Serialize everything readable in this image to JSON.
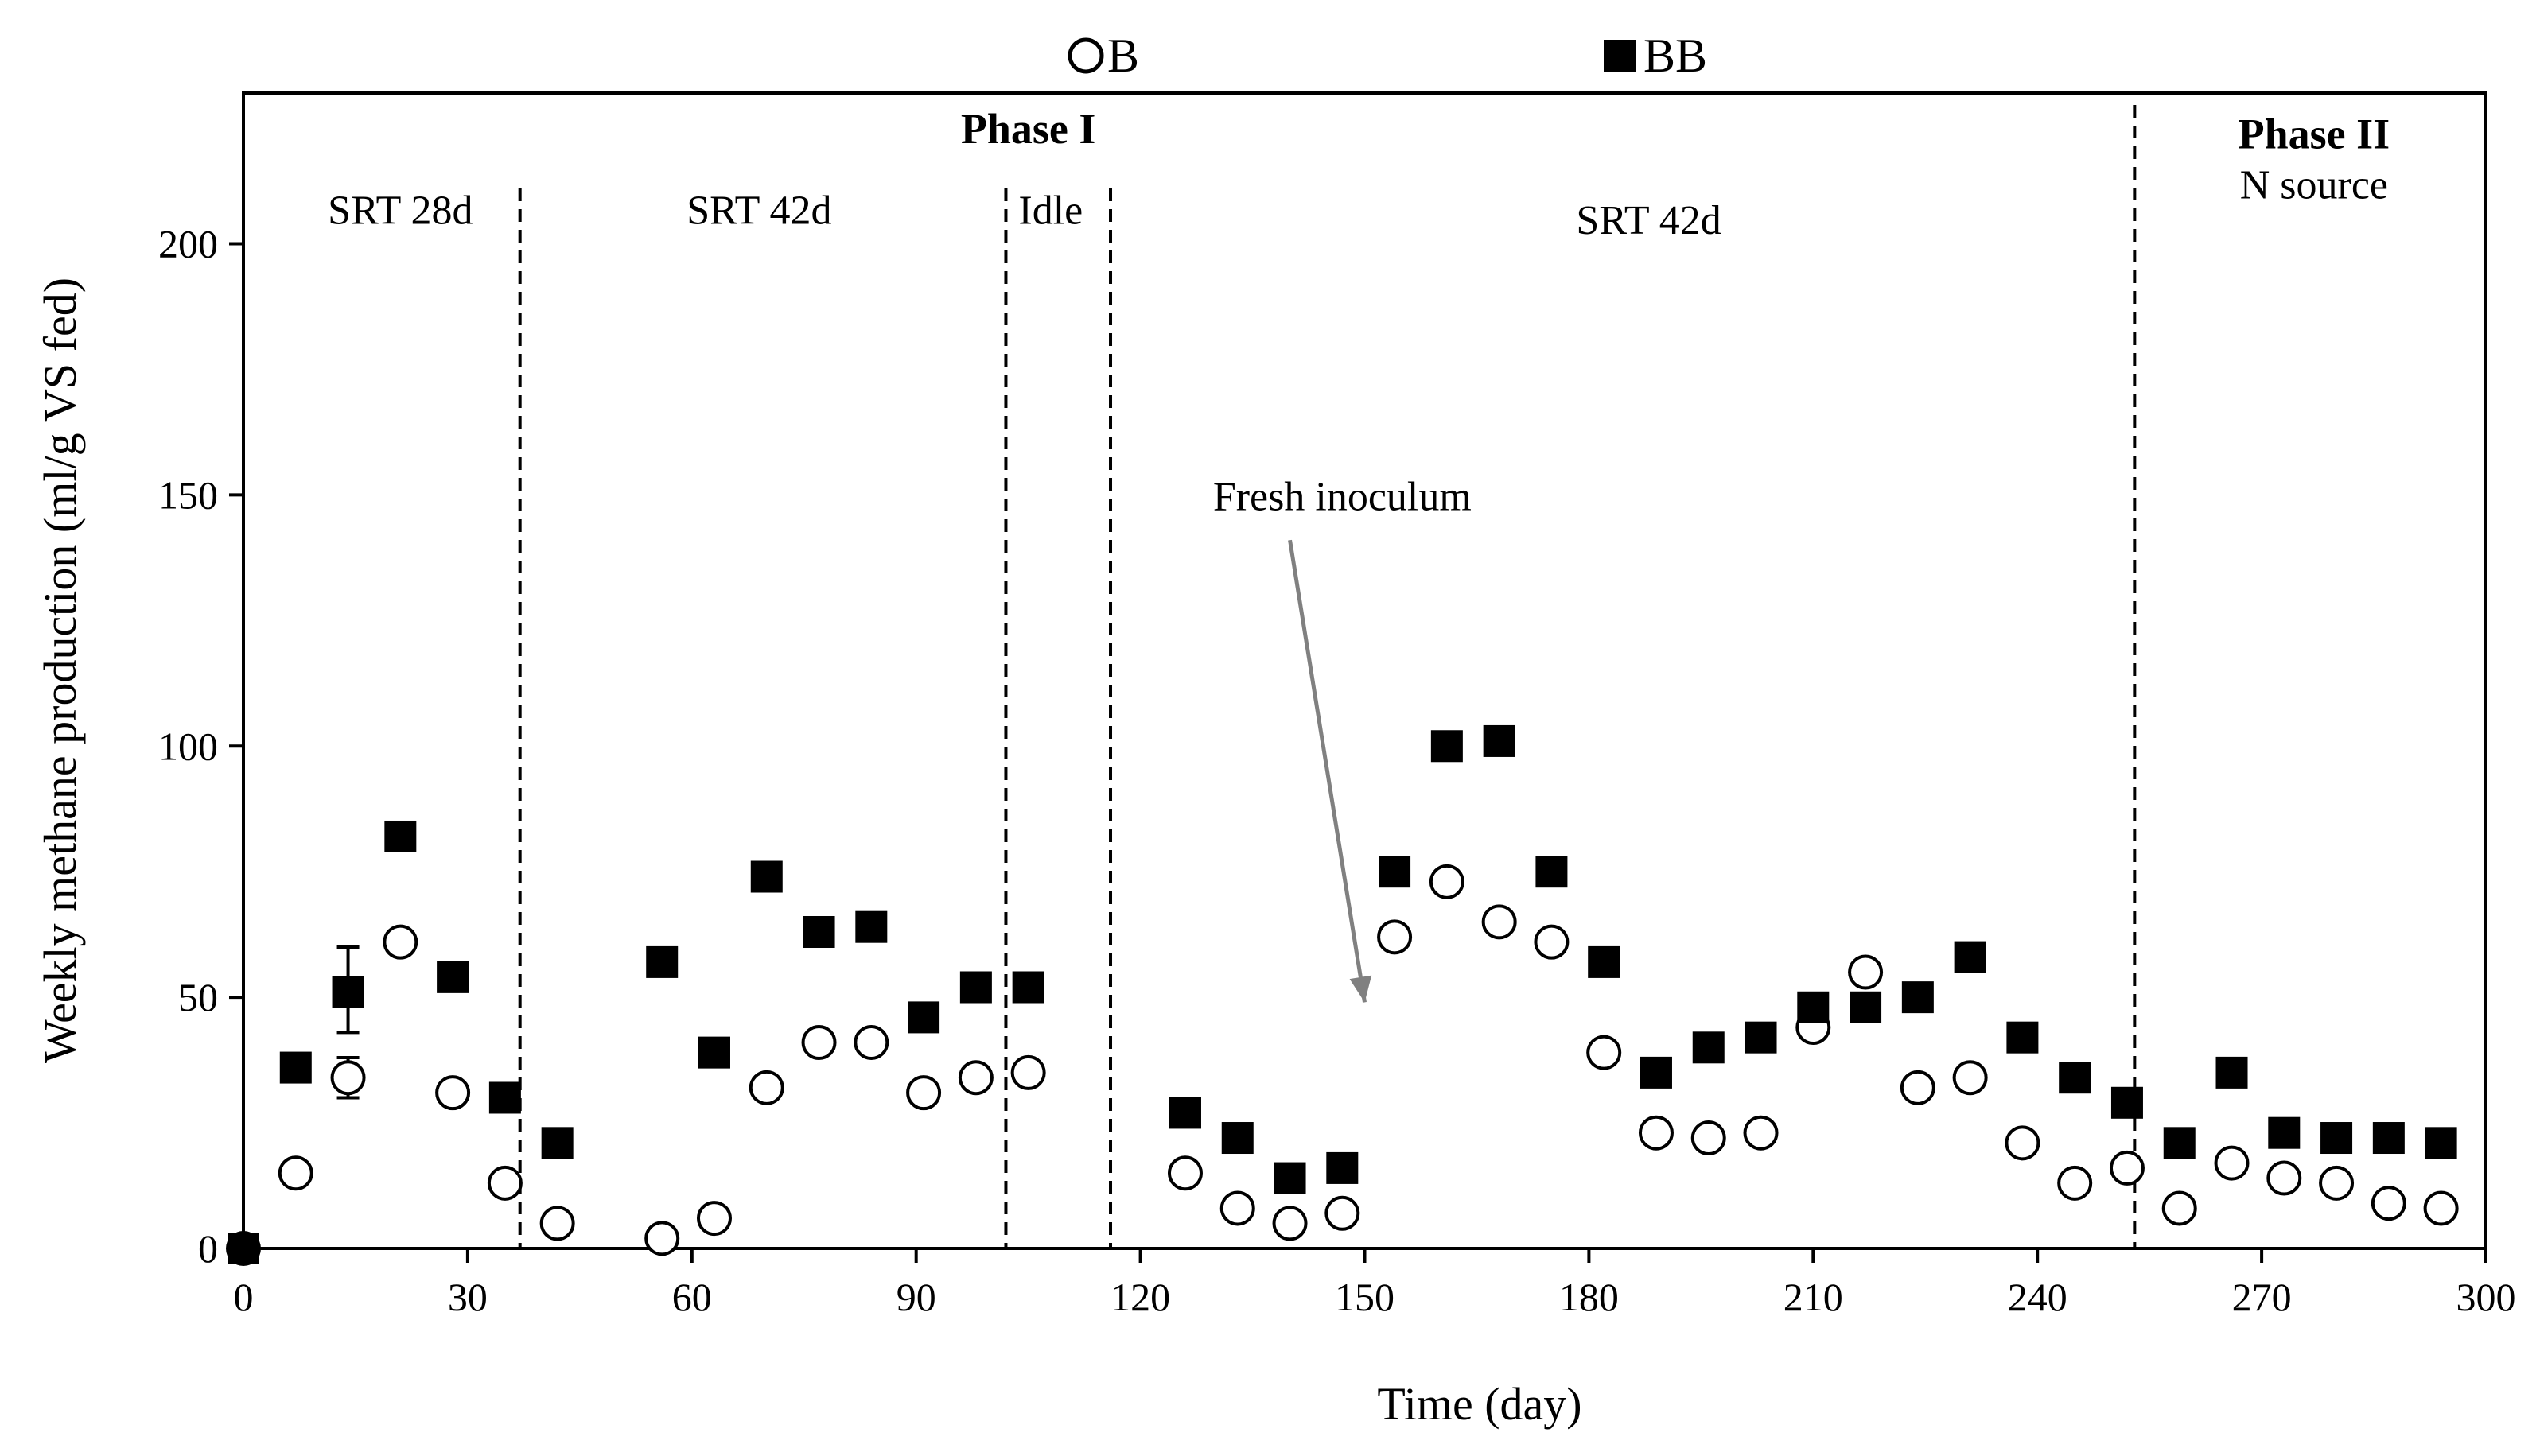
{
  "chart_data": {
    "type": "scatter",
    "title": "",
    "xlabel": "Time (day)",
    "ylabel": "Weekly methane production (ml/g VS fed)",
    "xlim": [
      0,
      300
    ],
    "ylim": [
      0,
      230
    ],
    "x_ticks": [
      0,
      30,
      60,
      90,
      120,
      150,
      180,
      210,
      240,
      270,
      300
    ],
    "y_ticks": [
      0,
      50,
      100,
      150,
      200
    ],
    "grid": false,
    "legend_position": "top",
    "series": [
      {
        "name": "B",
        "marker": "open-circle",
        "x": [
          0,
          7,
          14,
          21,
          28,
          35,
          42,
          56,
          63,
          70,
          77,
          84,
          91,
          98,
          105,
          126,
          133,
          140,
          147,
          154,
          161,
          168,
          175,
          182,
          189,
          196,
          203,
          210,
          217,
          224,
          231,
          238,
          245,
          252,
          259,
          266,
          273,
          280,
          287,
          294
        ],
        "y": [
          0,
          15,
          34,
          61,
          31,
          13,
          5,
          2,
          6,
          32,
          41,
          41,
          31,
          34,
          35,
          15,
          8,
          5,
          7,
          62,
          73,
          65,
          61,
          39,
          23,
          22,
          23,
          44,
          55,
          32,
          34,
          21,
          13,
          16,
          8,
          17,
          14,
          13,
          9,
          8
        ],
        "error_bars": [
          {
            "x": 14,
            "low": 30,
            "high": 38
          }
        ]
      },
      {
        "name": "BB",
        "marker": "filled-square",
        "x": [
          0,
          7,
          14,
          21,
          28,
          35,
          42,
          56,
          63,
          70,
          77,
          84,
          91,
          98,
          105,
          126,
          133,
          140,
          147,
          154,
          161,
          168,
          175,
          182,
          189,
          196,
          203,
          210,
          217,
          224,
          231,
          238,
          245,
          252,
          259,
          266,
          273,
          280,
          287,
          294
        ],
        "y": [
          0,
          36,
          51,
          82,
          54,
          30,
          21,
          57,
          39,
          74,
          63,
          64,
          46,
          52,
          52,
          27,
          22,
          14,
          16,
          75,
          100,
          101,
          75,
          57,
          35,
          40,
          42,
          48,
          48,
          50,
          58,
          42,
          34,
          29,
          21,
          35,
          23,
          22,
          22,
          21
        ],
        "error_bars": [
          {
            "x": 14,
            "low": 43,
            "high": 60
          }
        ]
      }
    ],
    "vertical_lines": [
      37,
      102,
      116,
      253
    ],
    "annotations": {
      "phase1": "Phase I",
      "phase2": "Phase II",
      "n_source": "N source",
      "srt28": "SRT 28d",
      "srt42a": "SRT 42d",
      "idle": "Idle",
      "srt42b": "SRT 42d",
      "fresh": "Fresh inoculum"
    },
    "annotation_positions": {
      "phase1": {
        "x": 105,
        "y": 220
      },
      "phase2": {
        "x": 277,
        "y": 219
      },
      "n_source": {
        "x": 277,
        "y": 209
      },
      "srt28": {
        "x": 21,
        "y": 204
      },
      "srt42a": {
        "x": 69,
        "y": 204
      },
      "idle": {
        "x": 108,
        "y": 204
      },
      "srt42b": {
        "x": 188,
        "y": 202
      },
      "fresh": {
        "x": 147,
        "y": 147
      }
    },
    "arrow": {
      "from_x": 140,
      "from_y": 141,
      "to_x": 150,
      "to_y": 49
    }
  }
}
